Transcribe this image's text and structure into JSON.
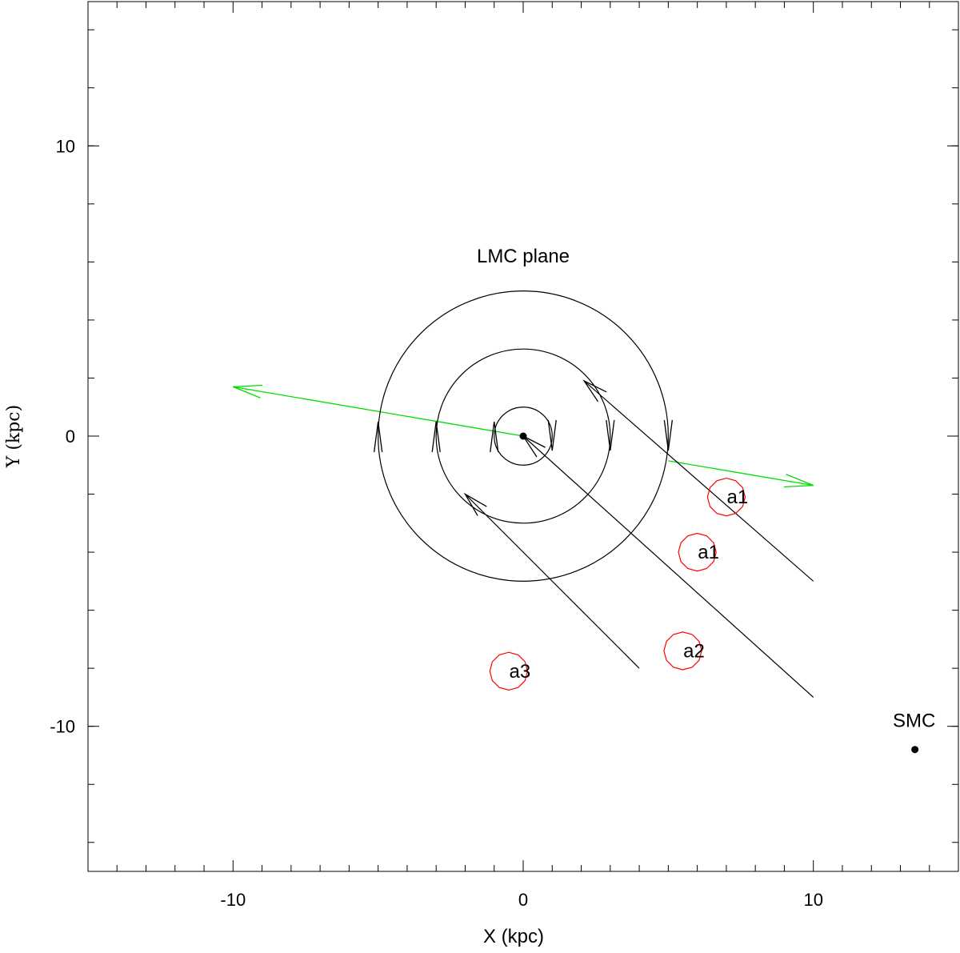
{
  "chart_data": {
    "type": "scatter",
    "title": "",
    "xlabel": "X (kpc)",
    "ylabel": "Y (kpc)",
    "xlim": [
      -15,
      15
    ],
    "ylim": [
      -15,
      15
    ],
    "xticks_major": [
      -10,
      0,
      10
    ],
    "xticks_minor": [
      -14,
      -13,
      -12,
      -11,
      -9,
      -8,
      -7,
      -6,
      -5,
      -4,
      -3,
      -2,
      -1,
      1,
      2,
      3,
      4,
      5,
      6,
      7,
      8,
      9,
      11,
      12,
      13,
      14
    ],
    "yticks_major": [
      -10,
      0,
      10
    ],
    "yticks_minor_step": 2,
    "grid": false,
    "plane_label": "LMC plane",
    "plane_label_pos": [
      0,
      6.2
    ],
    "center": [
      0,
      0
    ],
    "orbit_circles": [
      {
        "radius": 1,
        "arrows": [
          {
            "x": -1,
            "y": 0,
            "dir": "up"
          },
          {
            "x": 1,
            "y": 0,
            "dir": "down"
          }
        ]
      },
      {
        "radius": 3,
        "arrows": [
          {
            "x": -3,
            "y": 0,
            "dir": "up"
          },
          {
            "x": 3,
            "y": 0,
            "dir": "down"
          }
        ]
      },
      {
        "radius": 5,
        "arrows": [
          {
            "x": -5,
            "y": 0,
            "dir": "up"
          },
          {
            "x": 5,
            "y": 0,
            "dir": "down"
          }
        ]
      }
    ],
    "black_arrows": [
      {
        "from": [
          10,
          -5
        ],
        "to": [
          2.1,
          1.9
        ]
      },
      {
        "from": [
          10,
          -9
        ],
        "to": [
          0,
          0
        ]
      },
      {
        "from": [
          4,
          -8
        ],
        "to": [
          -2,
          -2
        ]
      }
    ],
    "green_line": {
      "color": "#00dd00",
      "from": [
        -10,
        1.7
      ],
      "to": [
        10,
        -1.7
      ],
      "hidden_between": [
        0,
        5
      ]
    },
    "clouds": [
      {
        "label": "a1",
        "x": 7.0,
        "y": -2.1
      },
      {
        "label": "a1",
        "x": 6.0,
        "y": -4.0
      },
      {
        "label": "a2",
        "x": 5.5,
        "y": -7.4
      },
      {
        "label": "a3",
        "x": -0.5,
        "y": -8.1
      }
    ],
    "cloud_color": "#ff0000",
    "cloud_radius": 0.65,
    "smc": {
      "label": "SMC",
      "x": 13.5,
      "y": -10.8
    }
  }
}
